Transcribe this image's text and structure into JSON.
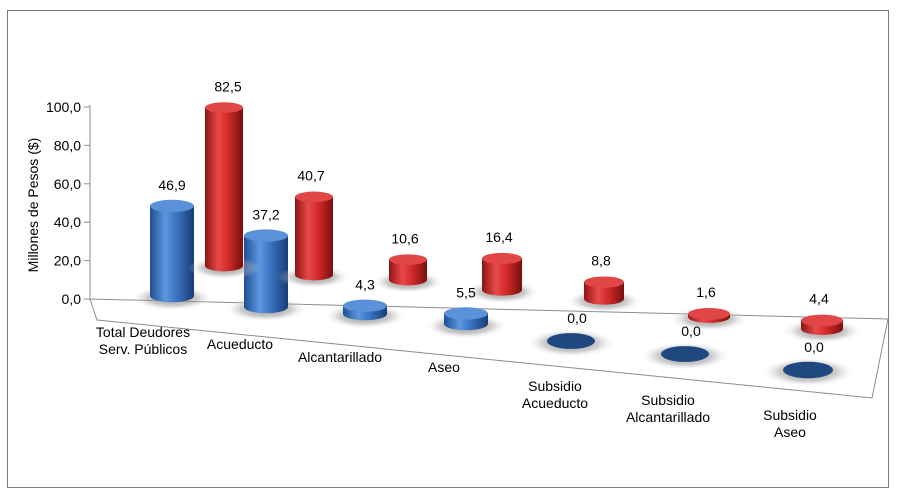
{
  "chart_data": {
    "type": "bar",
    "style": "3d-cylinder",
    "ylabel": "Millones de Pesos ($)",
    "ylim": [
      0,
      100
    ],
    "yticks": [
      "0,0",
      "20,0",
      "40,0",
      "60,0",
      "80,0",
      "100,0"
    ],
    "categories": [
      [
        "Total Deudores",
        "Serv. Públicos"
      ],
      [
        "Acueducto"
      ],
      [
        "Alcantarillado"
      ],
      [
        "Aseo"
      ],
      [
        "Subsidio",
        "Acueducto"
      ],
      [
        "Subsidio",
        "Alcantarillado"
      ],
      [
        "Subsidio",
        "Aseo"
      ]
    ],
    "series": [
      {
        "color": "#3a74c2",
        "values": [
          46.9,
          37.2,
          4.3,
          5.5,
          0.0,
          0.0,
          0.0
        ],
        "labels": [
          "46,9",
          "37,2",
          "4,3",
          "5,5",
          "0,0",
          "0,0",
          "0,0"
        ]
      },
      {
        "color": "#d32a2a",
        "values": [
          82.5,
          40.7,
          10.6,
          16.4,
          8.8,
          1.6,
          4.4
        ],
        "labels": [
          "82,5",
          "40,7",
          "10,6",
          "16,4",
          "8,8",
          "1,6",
          "4,4"
        ]
      }
    ],
    "grid": false,
    "legend": "none"
  }
}
